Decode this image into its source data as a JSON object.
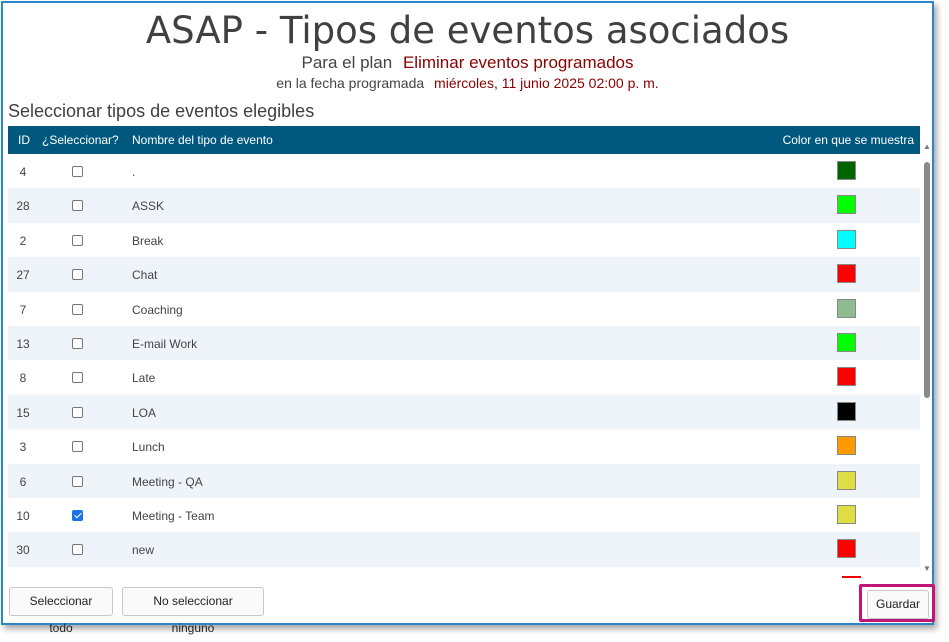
{
  "header": {
    "title": "ASAP - Tipos de eventos asociados",
    "plan_label": "Para el plan",
    "plan_value": "Eliminar eventos programados",
    "date_label": "en la fecha programada",
    "date_value": "miércoles, 11 junio 2025 02:00 p. m."
  },
  "section_title": "Seleccionar tipos de eventos elegibles",
  "table": {
    "columns": {
      "id": "ID",
      "select": "¿Seleccionar?",
      "name": "Nombre del tipo de evento",
      "color": "Color en que se muestra"
    },
    "rows": [
      {
        "id": "4",
        "checked": false,
        "name": ".",
        "color": "#006400"
      },
      {
        "id": "28",
        "checked": false,
        "name": "ASSK",
        "color": "#00ff00"
      },
      {
        "id": "2",
        "checked": false,
        "name": "Break",
        "color": "#00ffff"
      },
      {
        "id": "27",
        "checked": false,
        "name": "Chat",
        "color": "#ff0000"
      },
      {
        "id": "7",
        "checked": false,
        "name": "Coaching",
        "color": "#8fbc8f"
      },
      {
        "id": "13",
        "checked": false,
        "name": "E-mail Work",
        "color": "#00ff00"
      },
      {
        "id": "8",
        "checked": false,
        "name": "Late",
        "color": "#ff0000"
      },
      {
        "id": "15",
        "checked": false,
        "name": "LOA",
        "color": "#000000"
      },
      {
        "id": "3",
        "checked": false,
        "name": "Lunch",
        "color": "#ff9900"
      },
      {
        "id": "6",
        "checked": false,
        "name": "Meeting - QA",
        "color": "#dede44"
      },
      {
        "id": "10",
        "checked": true,
        "name": "Meeting - Team",
        "color": "#dede44"
      },
      {
        "id": "30",
        "checked": false,
        "name": "new",
        "color": "#ff0000"
      }
    ]
  },
  "buttons": {
    "select_all": "Seleccionar todo",
    "select_none": "No seleccionar ninguno",
    "save": "Guardar"
  }
}
